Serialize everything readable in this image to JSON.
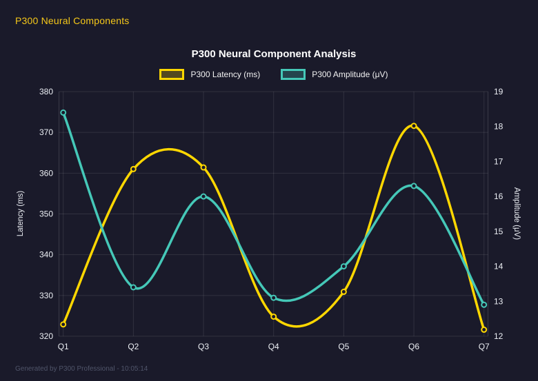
{
  "header": {
    "title": "P300 Neural Components"
  },
  "chart": {
    "title": "P300 Neural Component Analysis"
  },
  "chart_data": {
    "type": "line",
    "title": "P300 Neural Component Analysis",
    "categories": [
      "Q1",
      "Q2",
      "Q3",
      "Q4",
      "Q5",
      "Q6",
      "Q7"
    ],
    "series": [
      {
        "name": "P300 Latency (ms)",
        "axis": "left",
        "color": "#FFD700",
        "values": [
          322.9,
          361.0,
          361.4,
          324.8,
          330.9,
          371.6,
          321.6
        ]
      },
      {
        "name": "P300 Amplitude (μV)",
        "axis": "right",
        "color": "#45C8B8",
        "values": [
          18.4,
          13.4,
          16.0,
          13.1,
          14.0,
          16.3,
          12.9
        ]
      }
    ],
    "left_axis": {
      "label": "Latency (ms)",
      "min": 320,
      "max": 380,
      "ticks": [
        320,
        330,
        340,
        350,
        360,
        370,
        380
      ]
    },
    "right_axis": {
      "label": "Amplitude (μV)",
      "min": 12,
      "max": 19,
      "ticks": [
        12,
        13,
        14,
        15,
        16,
        17,
        18,
        19
      ]
    },
    "grid": true,
    "smooth": true,
    "legend_position": "top"
  },
  "footer": {
    "text": "Generated by P300 Professional - 10:05:14"
  },
  "colors": {
    "background": "#1a1a2a",
    "accent_yellow": "#FFD700",
    "accent_teal": "#45C8B8",
    "grid": "rgba(255,255,255,0.10)",
    "tick_text": "#eceff4",
    "footer_text": "#50556a"
  }
}
